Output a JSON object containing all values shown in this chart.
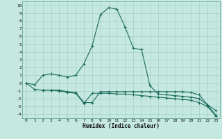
{
  "xlabel": "Humidex (Indice chaleur)",
  "background_color": "#c5e8e0",
  "grid_color": "#a8cfc8",
  "line_color": "#1a6b5a",
  "xlim": [
    -0.5,
    23.5
  ],
  "ylim": [
    -4.5,
    10.5
  ],
  "xticks": [
    0,
    1,
    2,
    3,
    4,
    5,
    6,
    7,
    8,
    9,
    10,
    11,
    12,
    13,
    14,
    15,
    16,
    17,
    18,
    19,
    20,
    21,
    22,
    23
  ],
  "yticks": [
    -4,
    -3,
    -2,
    -1,
    0,
    1,
    2,
    3,
    4,
    5,
    6,
    7,
    8,
    9,
    10
  ],
  "series": [
    {
      "x": [
        0,
        1,
        2,
        3,
        4,
        5,
        6,
        7,
        8,
        9,
        10,
        11,
        12,
        13,
        14,
        15,
        16,
        17,
        18,
        19,
        20,
        21,
        22,
        23
      ],
      "y": [
        0,
        -0.2,
        1.0,
        1.2,
        1.0,
        0.8,
        1.0,
        2.5,
        4.8,
        8.8,
        9.7,
        9.5,
        7.2,
        4.5,
        4.3,
        -0.3,
        -1.4,
        -1.5,
        -1.6,
        -1.7,
        -1.8,
        -2.0,
        -2.8,
        -3.5
      ]
    },
    {
      "x": [
        0,
        1,
        2,
        3,
        4,
        5,
        6,
        7,
        8,
        9,
        10,
        11,
        12,
        13,
        14,
        15,
        16,
        17,
        18,
        19,
        20,
        21,
        22,
        23
      ],
      "y": [
        0,
        -0.8,
        -0.9,
        -0.9,
        -0.9,
        -1.1,
        -1.2,
        -2.5,
        -2.5,
        -1.1,
        -1.1,
        -1.1,
        -1.1,
        -1.1,
        -1.1,
        -1.1,
        -1.1,
        -1.1,
        -1.1,
        -1.1,
        -1.2,
        -1.5,
        -2.8,
        -4.1
      ]
    },
    {
      "x": [
        2,
        3,
        4,
        5,
        6,
        7,
        8,
        9,
        10,
        11,
        12,
        13,
        14,
        15,
        16,
        17,
        18,
        19,
        20,
        21,
        22,
        23
      ],
      "y": [
        -0.9,
        -0.9,
        -1.0,
        -1.2,
        -1.3,
        -2.6,
        -1.3,
        -1.3,
        -1.3,
        -1.4,
        -1.4,
        -1.5,
        -1.6,
        -1.7,
        -1.8,
        -1.9,
        -2.0,
        -2.1,
        -2.2,
        -2.5,
        -3.0,
        -4.2
      ]
    }
  ]
}
